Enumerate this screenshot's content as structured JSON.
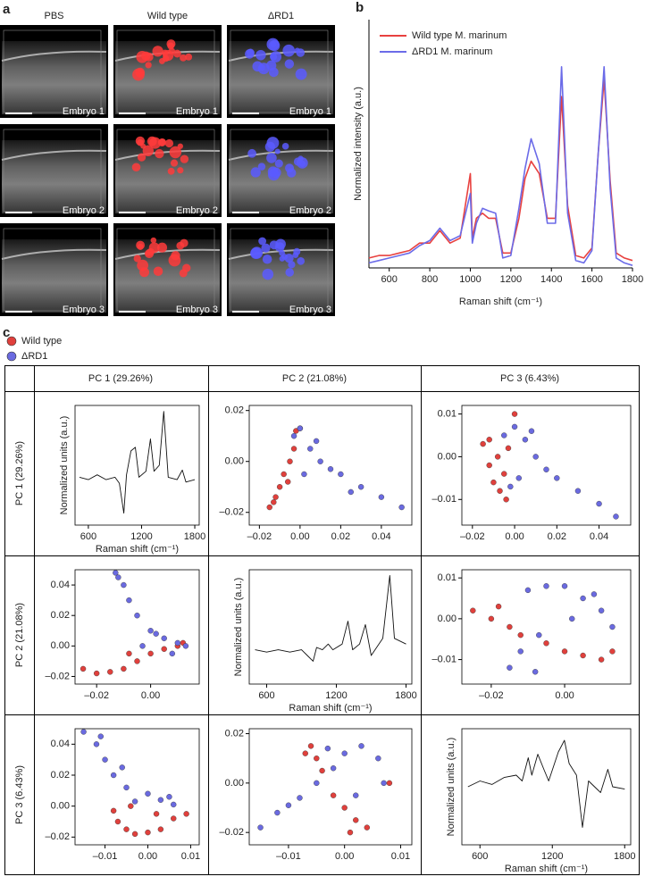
{
  "panel_a": {
    "label": "a",
    "columns": [
      "PBS",
      "Wild type",
      "ΔRD1"
    ],
    "embryo_labels": [
      [
        "Embryo 1",
        "Embryo 1",
        "Embryo 1"
      ],
      [
        "Embryo 2",
        "Embryo 2",
        "Embryo 2"
      ],
      [
        "Embryo 3",
        "Embryo 3",
        "Embryo 3"
      ]
    ]
  },
  "panel_b": {
    "label": "b"
  },
  "panel_c": {
    "label": "c",
    "legend": [
      {
        "name": "Wild type",
        "color": "#e0403c"
      },
      {
        "name": "ΔRD1",
        "color": "#6a6ae0"
      }
    ],
    "column_headers": [
      "PC 1 (29.26%)",
      "PC 2 (21.08%)",
      "PC 3 (6.43%)"
    ],
    "row_headers": [
      "PC 1 (29.26%)",
      "PC 2 (21.08%)",
      "PC 3 (6.43%)"
    ]
  },
  "chart_data": [
    {
      "type": "line",
      "x_label": "Raman shift (cm⁻¹)",
      "y_label": "Normalized intensity (a.u.)",
      "x": [
        500,
        550,
        600,
        650,
        700,
        750,
        800,
        850,
        900,
        950,
        1000,
        1010,
        1030,
        1060,
        1090,
        1125,
        1160,
        1200,
        1240,
        1270,
        1300,
        1340,
        1380,
        1420,
        1450,
        1480,
        1520,
        1560,
        1600,
        1630,
        1660,
        1690,
        1720,
        1760,
        1800
      ],
      "xlim": [
        500,
        1800
      ],
      "xticks": [
        600,
        800,
        1000,
        1200,
        1400,
        1600,
        1800
      ],
      "ylim": [
        0,
        1
      ],
      "frame": false,
      "series": [
        {
          "name": "Wild type M. marinum",
          "color": "#e8413f",
          "values": [
            0.04,
            0.05,
            0.05,
            0.06,
            0.07,
            0.1,
            0.1,
            0.15,
            0.1,
            0.12,
            0.38,
            0.12,
            0.2,
            0.22,
            0.2,
            0.2,
            0.06,
            0.06,
            0.2,
            0.36,
            0.43,
            0.38,
            0.2,
            0.2,
            0.69,
            0.25,
            0.05,
            0.04,
            0.08,
            0.45,
            0.76,
            0.35,
            0.06,
            0.04,
            0.03
          ]
        },
        {
          "name": "ΔRD1 M. marinum",
          "color": "#6b6be8",
          "values": [
            0.02,
            0.03,
            0.04,
            0.05,
            0.06,
            0.09,
            0.11,
            0.16,
            0.11,
            0.13,
            0.3,
            0.1,
            0.18,
            0.24,
            0.23,
            0.22,
            0.04,
            0.05,
            0.24,
            0.4,
            0.52,
            0.42,
            0.18,
            0.18,
            0.81,
            0.22,
            0.03,
            0.02,
            0.07,
            0.45,
            0.81,
            0.32,
            0.04,
            0.02,
            0.01
          ]
        }
      ]
    },
    {
      "type": "line",
      "x_label": "Raman shift (cm⁻¹)",
      "y_label": "Normalized units (a.u.)",
      "x": [
        500,
        600,
        700,
        800,
        900,
        950,
        1000,
        1030,
        1080,
        1130,
        1170,
        1250,
        1300,
        1340,
        1400,
        1450,
        1500,
        1600,
        1660,
        1700,
        1800
      ],
      "xlim": [
        450,
        1850
      ],
      "xticks": [
        600,
        1200,
        1800
      ],
      "ylim": [
        0,
        1
      ],
      "frame": true,
      "series": [
        {
          "color": "#111",
          "values": [
            0.4,
            0.38,
            0.42,
            0.38,
            0.4,
            0.35,
            0.1,
            0.42,
            0.62,
            0.65,
            0.4,
            0.45,
            0.72,
            0.45,
            0.5,
            0.95,
            0.4,
            0.38,
            0.46,
            0.36,
            0.38
          ]
        }
      ]
    },
    {
      "type": "scatter",
      "xlim": [
        -0.025,
        0.055
      ],
      "ylim": [
        -0.025,
        0.022
      ],
      "xticks": [
        {
          "value": -0.02,
          "label": "–0.02"
        },
        {
          "value": 0,
          "label": "0.00"
        },
        0.02,
        0.04
      ],
      "yticks": [
        {
          "value": -0.02,
          "label": "–0.02"
        },
        {
          "value": 0,
          "label": "0.00"
        },
        0.02
      ],
      "series": [
        {
          "color": "#e0403c",
          "x": [
            -0.015,
            -0.012,
            -0.01,
            -0.008,
            -0.005,
            -0.003,
            -0.002,
            0.0,
            -0.006,
            -0.013
          ],
          "values": [
            -0.018,
            -0.014,
            -0.01,
            -0.005,
            0.0,
            0.005,
            0.012,
            0.013,
            -0.008,
            -0.016
          ]
        },
        {
          "color": "#6a6ae0",
          "x": [
            -0.003,
            0.0,
            0.005,
            0.01,
            0.015,
            0.02,
            0.03,
            0.04,
            0.05,
            0.002,
            0.008,
            0.025
          ],
          "values": [
            0.01,
            0.013,
            0.005,
            0.0,
            -0.003,
            -0.005,
            -0.01,
            -0.014,
            -0.018,
            -0.005,
            0.008,
            -0.012
          ]
        }
      ]
    },
    {
      "type": "scatter",
      "xlim": [
        -0.025,
        0.055
      ],
      "ylim": [
        -0.016,
        0.012
      ],
      "xticks": [
        {
          "value": -0.02,
          "label": "–0.02"
        },
        {
          "value": 0,
          "label": "0.00"
        },
        0.02,
        0.04
      ],
      "yticks": [
        {
          "value": -0.01,
          "label": "–0.01"
        },
        {
          "value": 0,
          "label": "0.00"
        },
        0.01
      ],
      "series": [
        {
          "color": "#e0403c",
          "x": [
            -0.015,
            -0.012,
            -0.01,
            -0.007,
            -0.005,
            -0.003,
            -0.008,
            -0.012,
            0.0,
            -0.004
          ],
          "values": [
            0.003,
            -0.002,
            -0.006,
            -0.008,
            -0.004,
            0.002,
            0.0,
            0.004,
            0.01,
            -0.01
          ]
        },
        {
          "color": "#6a6ae0",
          "x": [
            -0.005,
            0.0,
            0.005,
            0.01,
            0.015,
            0.02,
            0.03,
            0.04,
            0.048,
            0.002,
            0.008,
            -0.002
          ],
          "values": [
            0.005,
            0.007,
            0.004,
            0.0,
            -0.003,
            -0.005,
            -0.008,
            -0.011,
            -0.014,
            -0.005,
            0.006,
            -0.007
          ]
        }
      ]
    },
    {
      "type": "scatter",
      "xlim": [
        -0.028,
        0.018
      ],
      "ylim": [
        -0.025,
        0.05
      ],
      "xticks": [
        {
          "value": -0.02,
          "label": "–0.02"
        },
        {
          "value": 0,
          "label": "0.00"
        }
      ],
      "yticks": [
        {
          "value": -0.02,
          "label": "–0.02"
        },
        {
          "value": 0,
          "label": "0.00"
        },
        0.02,
        0.04
      ],
      "series": [
        {
          "color": "#e0403c",
          "x": [
            -0.025,
            -0.02,
            -0.015,
            -0.01,
            -0.005,
            0.0,
            0.005,
            0.01,
            0.012,
            -0.008
          ],
          "values": [
            -0.015,
            -0.018,
            -0.017,
            -0.015,
            -0.01,
            -0.005,
            -0.002,
            0.0,
            0.002,
            -0.005
          ]
        },
        {
          "color": "#6a6ae0",
          "x": [
            -0.013,
            -0.01,
            -0.008,
            -0.005,
            0.0,
            0.005,
            0.01,
            0.013,
            -0.003,
            0.002,
            -0.012,
            0.008
          ],
          "values": [
            0.048,
            0.04,
            0.03,
            0.02,
            0.01,
            0.005,
            0.002,
            0.0,
            0.0,
            0.008,
            0.045,
            -0.005
          ]
        }
      ]
    },
    {
      "type": "line",
      "x_label": "Raman shift (cm⁻¹)",
      "y_label": "Normalized units (a.u.)",
      "x": [
        500,
        600,
        700,
        800,
        900,
        950,
        1000,
        1030,
        1080,
        1130,
        1170,
        1250,
        1300,
        1340,
        1400,
        1450,
        1500,
        1600,
        1660,
        1700,
        1800
      ],
      "xlim": [
        450,
        1850
      ],
      "xticks": [
        600,
        1200,
        1800
      ],
      "ylim": [
        0,
        1
      ],
      "frame": true,
      "series": [
        {
          "color": "#111",
          "values": [
            0.3,
            0.28,
            0.3,
            0.28,
            0.3,
            0.25,
            0.2,
            0.32,
            0.3,
            0.35,
            0.3,
            0.35,
            0.55,
            0.3,
            0.35,
            0.52,
            0.25,
            0.4,
            0.95,
            0.4,
            0.35
          ]
        }
      ]
    },
    {
      "type": "scatter",
      "xlim": [
        -0.028,
        0.018
      ],
      "ylim": [
        -0.016,
        0.012
      ],
      "xticks": [
        {
          "value": -0.02,
          "label": "–0.02"
        },
        {
          "value": 0,
          "label": "0.00"
        }
      ],
      "yticks": [
        {
          "value": -0.01,
          "label": "–0.01"
        },
        {
          "value": 0,
          "label": "0.00"
        },
        0.01
      ],
      "series": [
        {
          "color": "#e0403c",
          "x": [
            -0.025,
            -0.02,
            -0.015,
            -0.012,
            -0.005,
            0.0,
            0.005,
            0.01,
            0.013,
            -0.018
          ],
          "values": [
            0.002,
            0.0,
            -0.002,
            -0.004,
            -0.006,
            -0.008,
            -0.009,
            -0.01,
            -0.008,
            0.003
          ]
        },
        {
          "color": "#6a6ae0",
          "x": [
            -0.01,
            -0.005,
            0.0,
            0.005,
            0.01,
            0.013,
            -0.015,
            -0.012,
            -0.007,
            0.002,
            -0.008,
            0.008
          ],
          "values": [
            0.007,
            0.008,
            0.008,
            0.005,
            0.002,
            -0.002,
            -0.012,
            -0.008,
            -0.004,
            0.0,
            -0.013,
            0.006
          ]
        }
      ]
    },
    {
      "type": "scatter",
      "xlim": [
        -0.017,
        0.012
      ],
      "ylim": [
        -0.025,
        0.05
      ],
      "xticks": [
        {
          "value": -0.01,
          "label": "–0.01"
        },
        {
          "value": 0,
          "label": "0.00"
        },
        0.01
      ],
      "yticks": [
        {
          "value": -0.02,
          "label": "–0.02"
        },
        {
          "value": 0,
          "label": "0.00"
        },
        0.02,
        0.04
      ],
      "series": [
        {
          "color": "#e0403c",
          "x": [
            -0.007,
            -0.005,
            -0.003,
            0.0,
            0.003,
            0.006,
            -0.008,
            -0.004,
            0.002,
            0.009
          ],
          "values": [
            -0.01,
            -0.015,
            -0.018,
            -0.017,
            -0.015,
            -0.008,
            -0.003,
            0.0,
            -0.005,
            -0.005
          ]
        },
        {
          "color": "#6a6ae0",
          "x": [
            -0.015,
            -0.012,
            -0.01,
            -0.008,
            -0.005,
            0.0,
            0.003,
            0.006,
            -0.003,
            -0.011,
            0.005,
            -0.006
          ],
          "values": [
            0.048,
            0.04,
            0.03,
            0.02,
            0.012,
            0.008,
            0.004,
            0.001,
            0.003,
            0.045,
            0.006,
            0.025
          ]
        }
      ]
    },
    {
      "type": "scatter",
      "xlim": [
        -0.017,
        0.012
      ],
      "ylim": [
        -0.025,
        0.022
      ],
      "xticks": [
        {
          "value": -0.01,
          "label": "–0.01"
        },
        {
          "value": 0,
          "label": "0.00"
        },
        0.01
      ],
      "yticks": [
        {
          "value": -0.02,
          "label": "–0.02"
        },
        {
          "value": 0,
          "label": "0.00"
        },
        0.02
      ],
      "series": [
        {
          "color": "#e0403c",
          "x": [
            -0.006,
            -0.005,
            -0.004,
            -0.002,
            0.0,
            0.002,
            0.004,
            0.008,
            -0.007,
            0.001
          ],
          "values": [
            0.015,
            0.01,
            0.005,
            -0.005,
            -0.01,
            -0.015,
            -0.018,
            0.0,
            0.012,
            -0.02
          ]
        },
        {
          "color": "#6a6ae0",
          "x": [
            -0.015,
            -0.012,
            -0.008,
            -0.005,
            -0.002,
            0.0,
            0.003,
            0.006,
            0.007,
            -0.003,
            0.002,
            -0.01
          ],
          "values": [
            -0.018,
            -0.012,
            -0.006,
            0.0,
            0.006,
            0.012,
            0.015,
            0.01,
            0.0,
            0.014,
            -0.005,
            -0.009
          ]
        }
      ]
    },
    {
      "type": "line",
      "x_label": "Raman shift (cm⁻¹)",
      "y_label": "Normalized units (a.u.)",
      "x": [
        500,
        600,
        700,
        800,
        900,
        950,
        1000,
        1030,
        1080,
        1130,
        1170,
        1250,
        1300,
        1340,
        1400,
        1450,
        1500,
        1600,
        1660,
        1700,
        1800
      ],
      "xlim": [
        450,
        1850
      ],
      "xticks": [
        600,
        1200,
        1800
      ],
      "ylim": [
        0,
        1
      ],
      "frame": true,
      "series": [
        {
          "color": "#111",
          "values": [
            0.5,
            0.55,
            0.52,
            0.58,
            0.6,
            0.55,
            0.75,
            0.6,
            0.78,
            0.65,
            0.55,
            0.8,
            0.9,
            0.7,
            0.6,
            0.15,
            0.55,
            0.45,
            0.65,
            0.5,
            0.48
          ]
        }
      ]
    }
  ]
}
